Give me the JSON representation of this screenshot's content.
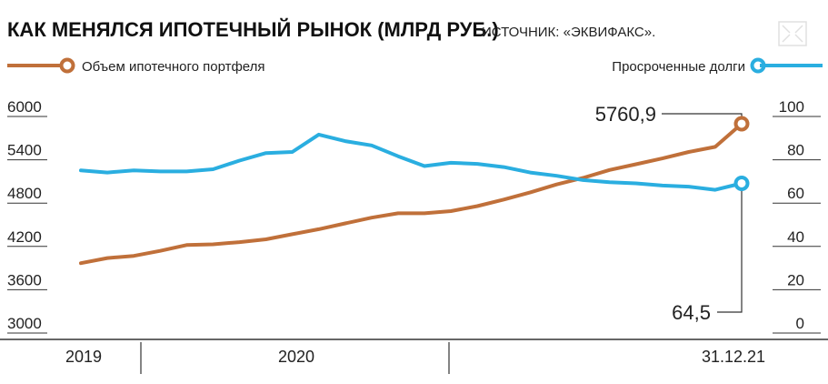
{
  "header": {
    "title": "КАК МЕНЯЛСЯ ИПОТЕЧНЫЙ РЫНОК (МЛРД РУБ.)",
    "source": "ИСТОЧНИК: «ЭКВИФАКС»."
  },
  "colors": {
    "portfolio": "#c0703a",
    "overdue": "#2aaee0",
    "text": "#222222",
    "axis": "#333333"
  },
  "chart_data": {
    "type": "line",
    "x": [
      1,
      2,
      3,
      4,
      5,
      6,
      7,
      8,
      9,
      10,
      11,
      12,
      13,
      14,
      15,
      16,
      17,
      18,
      19,
      20,
      21,
      22,
      23,
      24,
      25,
      26
    ],
    "series": [
      {
        "name": "Объем ипотечного портфеля",
        "axis": "left",
        "values": [
          3830,
          3900,
          3930,
          4000,
          4080,
          4090,
          4120,
          4160,
          4230,
          4300,
          4380,
          4460,
          4520,
          4520,
          4550,
          4620,
          4710,
          4810,
          4920,
          5010,
          5120,
          5200,
          5280,
          5370,
          5440,
          5761
        ],
        "end_label": "5760,9"
      },
      {
        "name": "Просроченные долги",
        "axis": "right",
        "values": [
          70.5,
          69.5,
          70.5,
          70,
          70,
          71,
          75,
          78.5,
          79,
          87,
          84,
          82,
          77,
          72.5,
          74,
          73.5,
          72,
          69.5,
          68,
          66,
          65,
          64.5,
          63.5,
          63,
          61.5,
          64.5
        ],
        "end_label": "64,5"
      }
    ],
    "left_axis": {
      "ticks": [
        "6000",
        "5400",
        "4800",
        "4200",
        "3600",
        "3000"
      ],
      "ylim": [
        3000,
        6000
      ]
    },
    "right_axis": {
      "ticks": [
        "100",
        "80",
        "60",
        "40",
        "20",
        "0"
      ],
      "ylim": [
        0,
        100
      ]
    },
    "x_labels": [
      "2019",
      "2020",
      "31.12.21"
    ],
    "grid": false
  }
}
